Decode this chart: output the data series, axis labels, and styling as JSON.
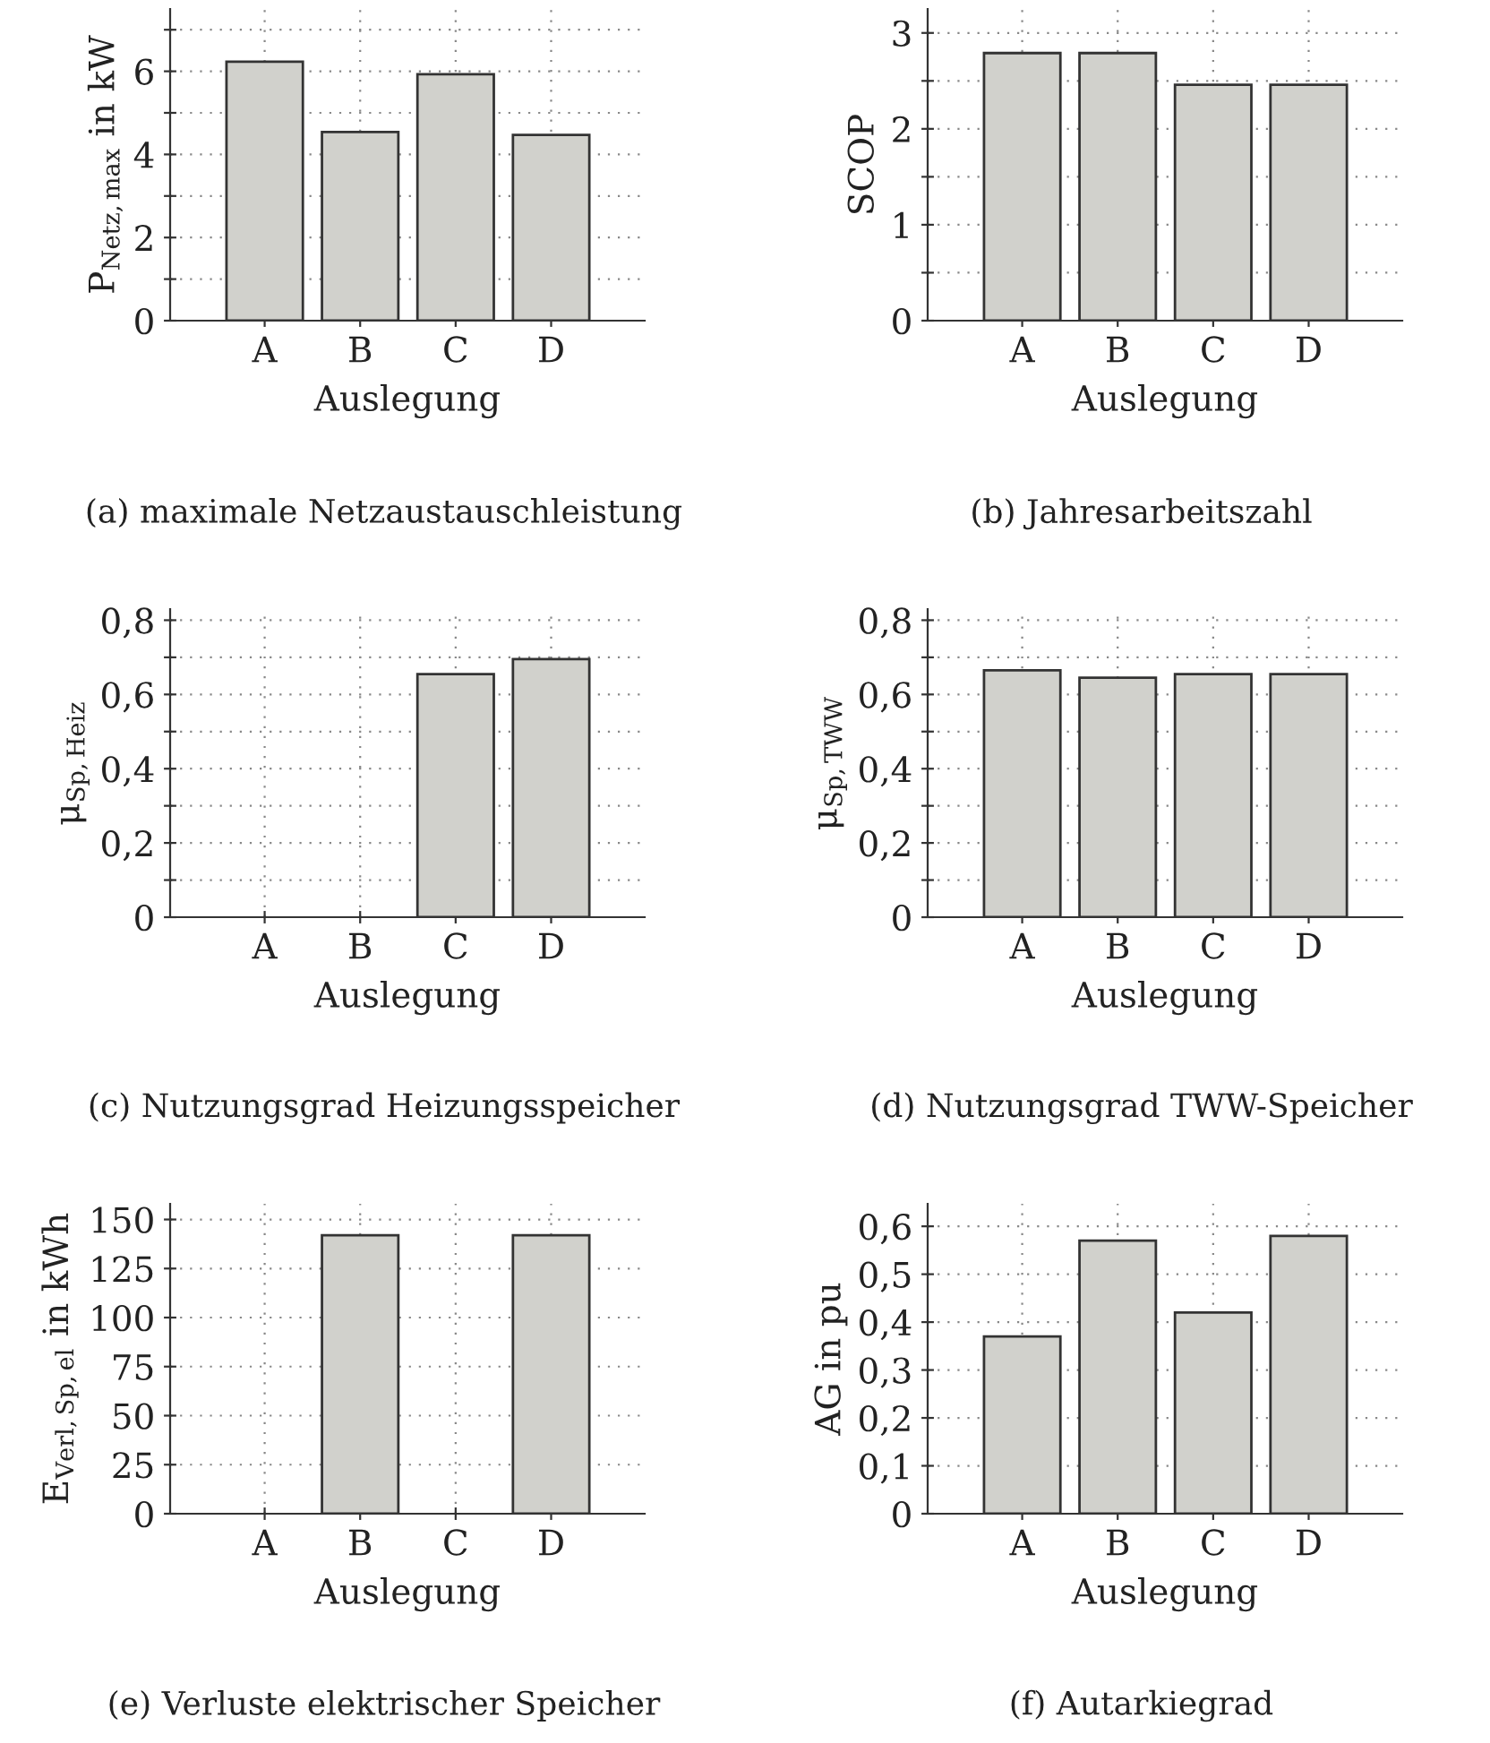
{
  "chart_data": [
    {
      "type": "bar",
      "title": "(a) maximale Netzaustauschleistung",
      "xlabel": "Auslegung",
      "ylabel": "P$_{Netz,max}$ in kW",
      "categories": [
        "A",
        "B",
        "C",
        "D"
      ],
      "values": [
        6.23,
        4.54,
        5.93,
        4.47
      ],
      "color": "#d1d1cc",
      "ylim": [
        0,
        7.5
      ],
      "yticks": [
        0,
        {
          "value": 1,
          "label": null
        },
        2,
        {
          "value": 3,
          "label": null
        },
        4,
        {
          "value": 5,
          "label": null
        },
        6,
        {
          "value": 7,
          "label": null
        }
      ],
      "grid": true
    },
    {
      "type": "bar",
      "title": "(b) Jahresarbeitszahl",
      "xlabel": "Auslegung",
      "ylabel": "SCOP",
      "categories": [
        "A",
        "B",
        "C",
        "D"
      ],
      "values": [
        2.79,
        2.79,
        2.46,
        2.46
      ],
      "color": "#d1d1cc",
      "ylim": [
        0,
        3.25
      ],
      "yticks": [
        0,
        {
          "value": 0.5,
          "label": null
        },
        1,
        {
          "value": 1.5,
          "label": null
        },
        2,
        {
          "value": 2.5,
          "label": null
        },
        3
      ],
      "grid": true
    },
    {
      "type": "bar",
      "title": "(c) Nutzungsgrad Heizungsspeicher",
      "xlabel": "Auslegung",
      "ylabel": "μ$_{Sp,Heiz}$",
      "categories": [
        "A",
        "B",
        "C",
        "D"
      ],
      "values": [
        0,
        0,
        0.655,
        0.695
      ],
      "color": "#d1d1cc",
      "ylim": [
        0,
        0.83
      ],
      "yticks": [
        0,
        {
          "value": 0.1,
          "label": null
        },
        {
          "value": 0.2,
          "label": "0,2"
        },
        {
          "value": 0.3,
          "label": null
        },
        {
          "value": 0.4,
          "label": "0,4"
        },
        {
          "value": 0.5,
          "label": null
        },
        {
          "value": 0.6,
          "label": "0,6"
        },
        {
          "value": 0.7,
          "label": null
        },
        {
          "value": 0.8,
          "label": "0,8"
        }
      ],
      "grid": true
    },
    {
      "type": "bar",
      "title": "(d) Nutzungsgrad TWW-Speicher",
      "xlabel": "Auslegung",
      "ylabel": "μ$_{Sp,TWW}$",
      "categories": [
        "A",
        "B",
        "C",
        "D"
      ],
      "values": [
        0.665,
        0.645,
        0.655,
        0.655
      ],
      "color": "#d1d1cc",
      "ylim": [
        0,
        0.83
      ],
      "yticks": [
        0,
        {
          "value": 0.1,
          "label": null
        },
        {
          "value": 0.2,
          "label": "0,2"
        },
        {
          "value": 0.3,
          "label": null
        },
        {
          "value": 0.4,
          "label": "0,4"
        },
        {
          "value": 0.5,
          "label": null
        },
        {
          "value": 0.6,
          "label": "0,6"
        },
        {
          "value": 0.7,
          "label": null
        },
        {
          "value": 0.8,
          "label": "0,8"
        }
      ],
      "grid": true
    },
    {
      "type": "bar",
      "title": "(e) Verluste elektrischer Speicher",
      "xlabel": "Auslegung",
      "ylabel": "E$_{Verl,Sp,el}$ in kWh",
      "categories": [
        "A",
        "B",
        "C",
        "D"
      ],
      "values": [
        0,
        142,
        0,
        142
      ],
      "color": "#d1d1cc",
      "ylim": [
        0,
        158
      ],
      "yticks": [
        0,
        25,
        50,
        75,
        100,
        125,
        150
      ],
      "grid": true
    },
    {
      "type": "bar",
      "title": "(f) Autarkiegrad",
      "xlabel": "Auslegung",
      "ylabel": "AG in pu",
      "categories": [
        "A",
        "B",
        "C",
        "D"
      ],
      "values": [
        0.37,
        0.57,
        0.42,
        0.58
      ],
      "color": "#d1d1cc",
      "ylim": [
        0,
        0.647
      ],
      "yticks": [
        0,
        {
          "value": 0.1,
          "label": "0,1"
        },
        {
          "value": 0.2,
          "label": "0,2"
        },
        {
          "value": 0.3,
          "label": "0,3"
        },
        {
          "value": 0.4,
          "label": "0,4"
        },
        {
          "value": 0.5,
          "label": "0,5"
        },
        {
          "value": 0.6,
          "label": "0,6"
        }
      ],
      "grid": true
    }
  ]
}
